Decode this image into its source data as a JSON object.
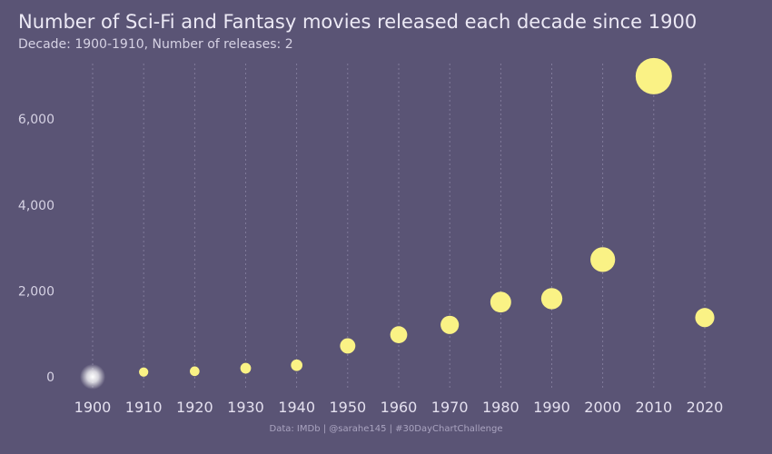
{
  "title": "Number of Sci-Fi and Fantasy movies released each decade since 1900",
  "subtitle": "Decade: 1900-1910, Number of releases: 2",
  "caption": "Data: IMDb | @sarahe145 | #30DayChartChallenge",
  "colors": {
    "background": "#5a5475",
    "point": "#faf285",
    "highlight": "#ffffff",
    "grid": "#8a84a3"
  },
  "chart_data": {
    "type": "scatter",
    "title": "Number of Sci-Fi and Fantasy movies released each decade since 1900",
    "subtitle": "Decade: 1900-1910, Number of releases: 2",
    "xlabel": "",
    "ylabel": "",
    "x": [
      1900,
      1910,
      1920,
      1930,
      1940,
      1950,
      1960,
      1970,
      1980,
      1990,
      2000,
      2010,
      2020
    ],
    "values": [
      2,
      110,
      130,
      200,
      270,
      720,
      980,
      1210,
      1740,
      1820,
      2730,
      7000,
      1380
    ],
    "highlighted_decade": 1900,
    "point_size": "proportional to number of releases",
    "xticks": [
      "1900",
      "1910",
      "1920",
      "1930",
      "1940",
      "1950",
      "1960",
      "1970",
      "1980",
      "1990",
      "2000",
      "2010",
      "2020"
    ],
    "yticks": [
      "0",
      "2,000",
      "4,000",
      "6,000"
    ],
    "ytick_values": [
      0,
      2000,
      4000,
      6000
    ],
    "grid": "vertical dashed lines at each decade",
    "legend": "none"
  }
}
